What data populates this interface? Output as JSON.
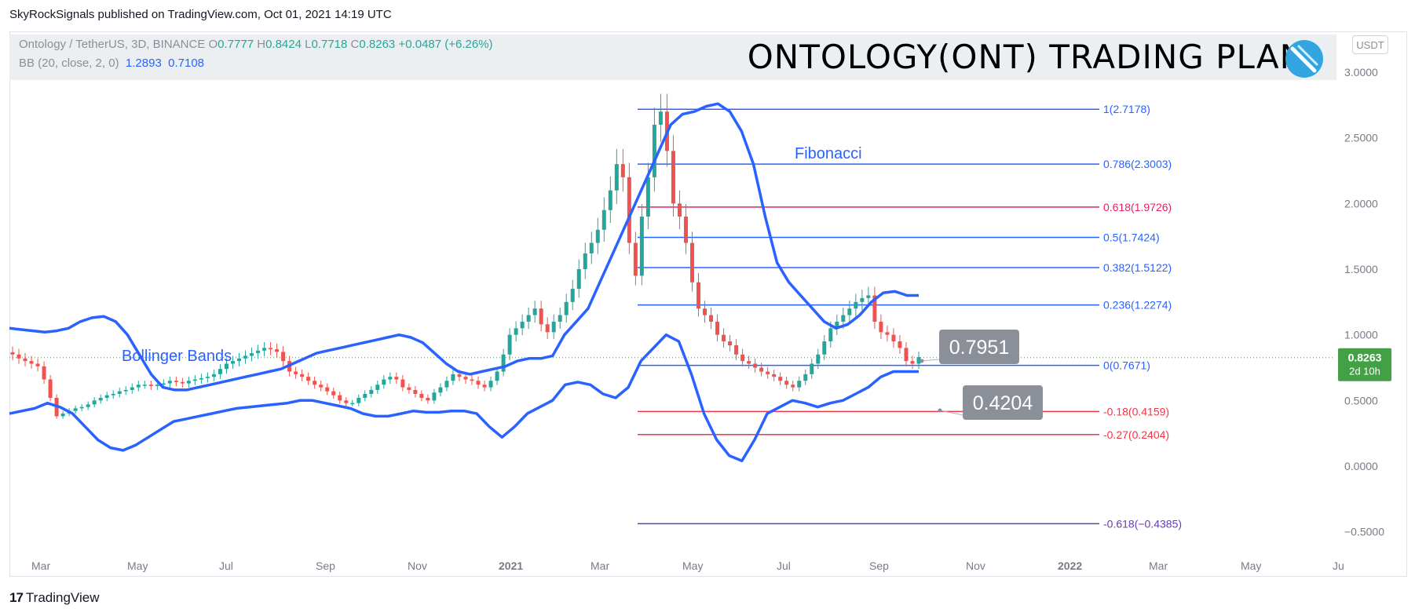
{
  "header": {
    "publisher": "SkyRockSignals published on TradingView.com, Oct 01, 2021 14:19 UTC"
  },
  "legend": {
    "symbol": "Ontology / TetherUS, 3D, BINANCE",
    "o_label": "O",
    "o": "0.7777",
    "h_label": "H",
    "h": "0.8424",
    "l_label": "L",
    "l": "0.7718",
    "c_label": "C",
    "c": "0.8263",
    "change": "+0.0487 (+6.26%)",
    "bb_label": "BB (20, close, 2, 0)",
    "bb_upper": "1.2893",
    "bb_lower": "0.7108"
  },
  "title": "ONTOLOGY(ONT) TRADING PLAN",
  "currency_button": "USDT",
  "footer": {
    "mark": "17",
    "brand": "TradingView"
  },
  "colors": {
    "up": "#26a69a",
    "down": "#ef5350",
    "band": "#2962ff",
    "fib_blue": "#2962ff",
    "fib_red": "#f23645",
    "fib_crimson": "#e91e63",
    "fib_purple": "#673ab7",
    "price_tag": "#43a047",
    "callout": "#8a8f98"
  },
  "chart_data": {
    "type": "candlestick",
    "pair": "ONT/USDT",
    "timeframe": "3D",
    "ylim": [
      -0.7,
      3.0
    ],
    "y_ticks": [
      "3.0000",
      "2.5000",
      "2.0000",
      "1.5000",
      "1.0000",
      "0.5000",
      "0.0000",
      "−0.5000"
    ],
    "x_ticks": [
      "Mar",
      "May",
      "Jul",
      "Sep",
      "Nov",
      "2021",
      "Mar",
      "May",
      "Jul",
      "Sep",
      "Nov",
      "2022",
      "Mar",
      "May",
      "Ju"
    ],
    "last_price": "0.8263",
    "countdown": "2d 10h",
    "annotations": [
      "Bollinger Bands",
      "Fibonacci"
    ],
    "callouts": [
      "0.7951",
      "0.4204"
    ],
    "fib_levels": [
      {
        "label": "1(2.7178)",
        "value": 2.7178,
        "color": "#2962ff"
      },
      {
        "label": "0.786(2.3003)",
        "value": 2.3003,
        "color": "#2962ff"
      },
      {
        "label": "0.618(1.9726)",
        "value": 1.9726,
        "color": "#e91e63"
      },
      {
        "label": "0.5(1.7424)",
        "value": 1.7424,
        "color": "#2962ff"
      },
      {
        "label": "0.382(1.5122)",
        "value": 1.5122,
        "color": "#2962ff"
      },
      {
        "label": "0.236(1.2274)",
        "value": 1.2274,
        "color": "#2962ff"
      },
      {
        "label": "0(0.7671)",
        "value": 0.7671,
        "color": "#2962ff"
      },
      {
        "label": "-0.18(0.4159)",
        "value": 0.4159,
        "color": "#f23645"
      },
      {
        "label": "-0.27(0.2404)",
        "value": 0.2404,
        "color": "#f23645"
      },
      {
        "label": "-0.618(−0.4385)",
        "value": -0.4385,
        "color": "#673ab7"
      }
    ],
    "candles_close": [
      0.85,
      0.82,
      0.8,
      0.78,
      0.76,
      0.66,
      0.52,
      0.38,
      0.4,
      0.42,
      0.44,
      0.45,
      0.47,
      0.5,
      0.52,
      0.54,
      0.55,
      0.57,
      0.58,
      0.6,
      0.62,
      0.62,
      0.61,
      0.62,
      0.63,
      0.65,
      0.64,
      0.63,
      0.65,
      0.66,
      0.67,
      0.68,
      0.7,
      0.74,
      0.78,
      0.8,
      0.82,
      0.84,
      0.86,
      0.88,
      0.9,
      0.89,
      0.87,
      0.8,
      0.72,
      0.7,
      0.68,
      0.65,
      0.62,
      0.6,
      0.57,
      0.54,
      0.5,
      0.48,
      0.48,
      0.52,
      0.55,
      0.58,
      0.62,
      0.66,
      0.68,
      0.66,
      0.6,
      0.58,
      0.55,
      0.52,
      0.5,
      0.56,
      0.6,
      0.65,
      0.7,
      0.68,
      0.66,
      0.65,
      0.62,
      0.6,
      0.65,
      0.72,
      0.85,
      1.0,
      1.05,
      1.1,
      1.15,
      1.2,
      1.08,
      1.02,
      1.1,
      1.15,
      1.25,
      1.35,
      1.5,
      1.62,
      1.7,
      1.8,
      1.95,
      2.1,
      2.3,
      2.2,
      1.7,
      1.45,
      1.9,
      2.2,
      2.6,
      2.7,
      2.4,
      2.0,
      1.9,
      1.7,
      1.4,
      1.2,
      1.15,
      1.1,
      1.0,
      0.95,
      0.92,
      0.85,
      0.8,
      0.78,
      0.75,
      0.72,
      0.7,
      0.68,
      0.65,
      0.62,
      0.6,
      0.65,
      0.7,
      0.78,
      0.85,
      0.95,
      1.05,
      1.1,
      1.15,
      1.2,
      1.25,
      1.28,
      1.3,
      1.1,
      1.02,
      1.0,
      0.95,
      0.9,
      0.8,
      0.78,
      0.83
    ],
    "bb_upper": [
      1.05,
      1.04,
      1.03,
      1.02,
      1.03,
      1.05,
      1.1,
      1.13,
      1.14,
      1.1,
      1.0,
      0.85,
      0.7,
      0.6,
      0.58,
      0.58,
      0.6,
      0.62,
      0.64,
      0.66,
      0.68,
      0.7,
      0.72,
      0.74,
      0.78,
      0.82,
      0.86,
      0.88,
      0.9,
      0.92,
      0.94,
      0.96,
      0.98,
      1.0,
      0.98,
      0.94,
      0.86,
      0.78,
      0.72,
      0.7,
      0.72,
      0.74,
      0.76,
      0.8,
      0.82,
      0.82,
      0.84,
      1.0,
      1.1,
      1.2,
      1.4,
      1.6,
      1.8,
      2.0,
      2.2,
      2.4,
      2.6,
      2.68,
      2.7,
      2.74,
      2.76,
      2.7,
      2.55,
      2.3,
      1.9,
      1.55,
      1.4,
      1.3,
      1.2,
      1.1,
      1.05,
      1.08,
      1.15,
      1.25,
      1.32,
      1.33,
      1.3,
      1.3
    ],
    "bb_lower": [
      0.4,
      0.42,
      0.44,
      0.48,
      0.45,
      0.4,
      0.3,
      0.2,
      0.14,
      0.12,
      0.16,
      0.22,
      0.28,
      0.34,
      0.36,
      0.38,
      0.4,
      0.42,
      0.44,
      0.45,
      0.46,
      0.47,
      0.48,
      0.5,
      0.5,
      0.48,
      0.46,
      0.44,
      0.4,
      0.38,
      0.38,
      0.4,
      0.42,
      0.41,
      0.41,
      0.42,
      0.42,
      0.4,
      0.3,
      0.22,
      0.3,
      0.4,
      0.45,
      0.5,
      0.62,
      0.64,
      0.62,
      0.55,
      0.52,
      0.6,
      0.8,
      0.9,
      1.0,
      0.95,
      0.7,
      0.4,
      0.2,
      0.08,
      0.04,
      0.2,
      0.4,
      0.45,
      0.5,
      0.48,
      0.45,
      0.48,
      0.5,
      0.55,
      0.6,
      0.68,
      0.72,
      0.72,
      0.72
    ]
  }
}
